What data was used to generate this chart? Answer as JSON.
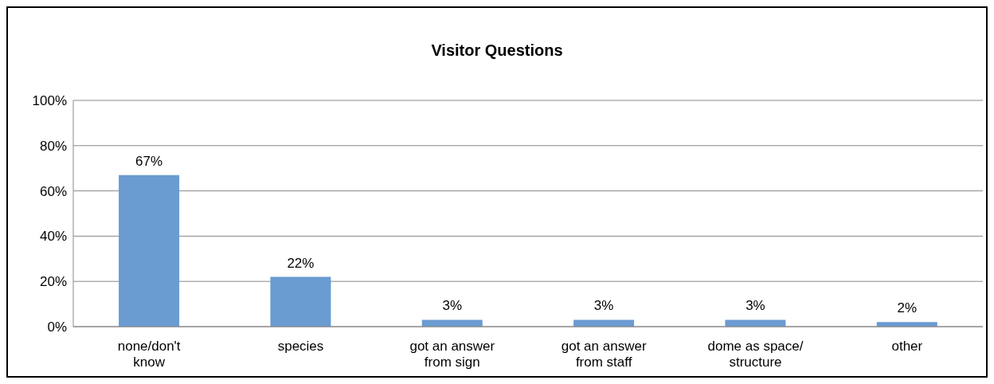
{
  "chart_data": {
    "type": "bar",
    "title": "Visitor Questions",
    "categories": [
      "none/don't know",
      "species",
      "got an answer from sign",
      "got an answer from staff",
      "dome as space/ structure",
      "other"
    ],
    "values": [
      67,
      22,
      3,
      3,
      3,
      2
    ],
    "value_labels": [
      "67%",
      "22%",
      "3%",
      "3%",
      "3%",
      "2%"
    ],
    "color": "#6a9bd1",
    "ylim": [
      0,
      100
    ],
    "yticks": [
      {
        "value": 0,
        "label": "0%"
      },
      {
        "value": 20,
        "label": "20%"
      },
      {
        "value": 40,
        "label": "40%"
      },
      {
        "value": 60,
        "label": "60%"
      },
      {
        "value": 80,
        "label": "80%"
      },
      {
        "value": 100,
        "label": "100%"
      }
    ],
    "grid": "y"
  }
}
